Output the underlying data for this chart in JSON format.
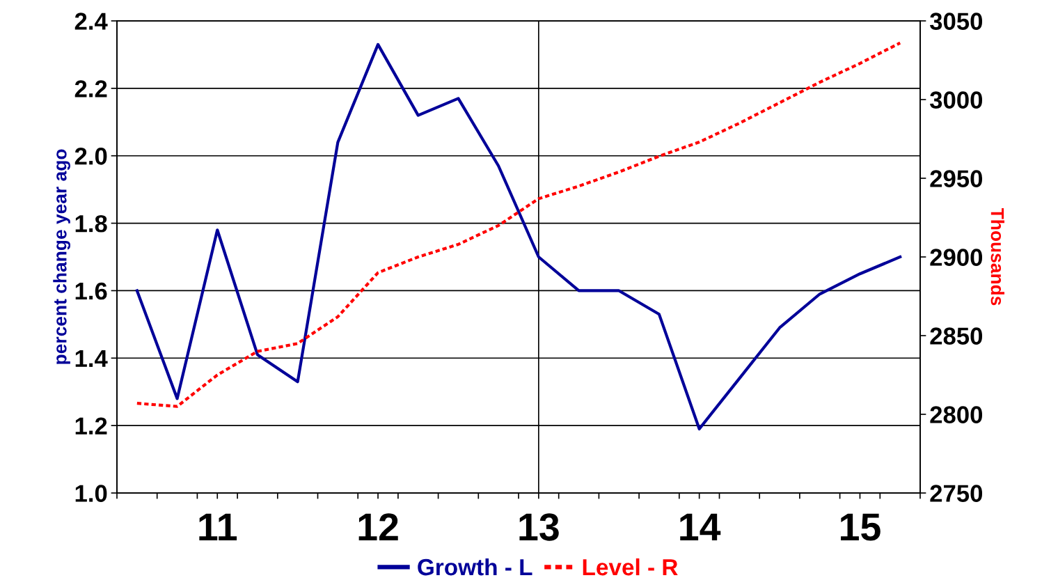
{
  "chart_data": {
    "type": "line",
    "x": [
      10.5,
      10.75,
      11.0,
      11.25,
      11.5,
      11.75,
      12.0,
      12.25,
      12.5,
      12.75,
      13.0,
      13.25,
      13.5,
      13.75,
      14.0,
      14.25,
      14.5,
      14.75,
      15.0,
      15.25
    ],
    "series": [
      {
        "name": "Growth - L",
        "color": "#000099",
        "line_style": "solid",
        "values": [
          1.6,
          1.28,
          1.78,
          1.41,
          1.33,
          2.04,
          2.33,
          2.12,
          2.17,
          1.97,
          1.7,
          1.6,
          1.6,
          1.53,
          1.19,
          1.34,
          1.49,
          1.59,
          1.65,
          1.7
        ]
      },
      {
        "name": "Level - R",
        "color": "#ff0000",
        "line_style": "dotted",
        "axis": "y2",
        "values": [
          2807,
          2805,
          2825,
          2840,
          2845,
          2862,
          2890,
          2900,
          2908,
          2920,
          2937,
          2945,
          2954,
          2964,
          2973,
          2985,
          2998,
          3011,
          3023,
          3036
        ]
      }
    ],
    "ylabel": "percent change year ago",
    "y2label": "Thousands",
    "xlim": [
      10.375,
      15.375
    ],
    "xticks": [
      {
        "value": 10.375,
        "label": null
      },
      {
        "value": 10.625,
        "label": null
      },
      {
        "value": 10.875,
        "label": null
      },
      11,
      {
        "value": 11.125,
        "label": null
      },
      {
        "value": 11.375,
        "label": null
      },
      {
        "value": 11.625,
        "label": null
      },
      {
        "value": 11.875,
        "label": null
      },
      12,
      {
        "value": 12.125,
        "label": null
      },
      {
        "value": 12.375,
        "label": null
      },
      {
        "value": 12.625,
        "label": null
      },
      {
        "value": 12.875,
        "label": null
      },
      13,
      {
        "value": 13.125,
        "label": null
      },
      {
        "value": 13.375,
        "label": null
      },
      {
        "value": 13.625,
        "label": null
      },
      {
        "value": 13.875,
        "label": null
      },
      14,
      {
        "value": 14.125,
        "label": null
      },
      {
        "value": 14.375,
        "label": null
      },
      {
        "value": 14.625,
        "label": null
      },
      {
        "value": 14.875,
        "label": null
      },
      15,
      {
        "value": 15.125,
        "label": null
      },
      {
        "value": 15.375,
        "label": null
      }
    ],
    "ylim": [
      1.0,
      2.4
    ],
    "yticks": [
      {
        "value": 1.0,
        "label": "1.0"
      },
      1.2,
      1.4,
      1.6,
      1.8,
      {
        "value": 2.0,
        "label": "2.0"
      },
      2.2,
      2.4
    ],
    "y2lim": [
      2750,
      3050
    ],
    "y2ticks": [
      2750,
      2800,
      2850,
      2900,
      2950,
      3000,
      3050
    ],
    "ref_lines": [
      {
        "axis": "x",
        "value": 13.0,
        "label": null,
        "color": "#000000",
        "line_style": "solid"
      }
    ],
    "grid": "y",
    "legend": "bottom",
    "marker": "none"
  }
}
